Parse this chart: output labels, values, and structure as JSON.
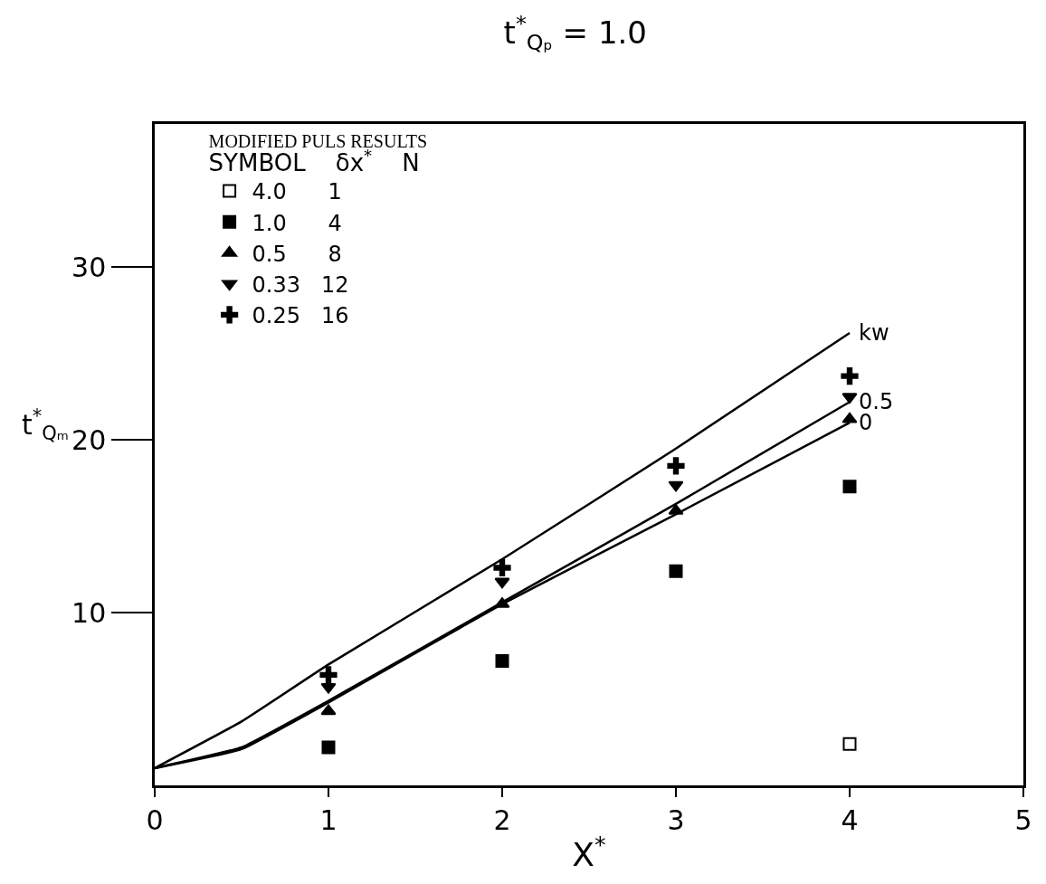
{
  "chart_data": {
    "type": "scatter",
    "title": "t$^{*}$$_{Qₚ}$ = 1.0",
    "xlabel": "X$^{*}$",
    "ylabel": "t$^{*}$$_{Qₘ}$",
    "legend_title": "MODIFIED PULS RESULTS",
    "annotations": [
      "SYMBOL    δx$^{*}$    N"
    ],
    "xlim": [
      0,
      5
    ],
    "ylim": [
      0,
      38.3
    ],
    "xticks": [
      0,
      1,
      2,
      3,
      4,
      5
    ],
    "yticks": [
      10,
      20,
      30
    ],
    "grid": false,
    "legend": "top left",
    "series": [
      {
        "name": "4.0      1",
        "color": "#000000",
        "marker": "square-open",
        "x": [
          4
        ],
        "values": [
          2.4
        ]
      },
      {
        "name": "1.0      4",
        "color": "#000000",
        "marker": "square",
        "x": [
          1,
          2,
          3,
          4
        ],
        "values": [
          2.2,
          7.2,
          12.4,
          17.3
        ]
      },
      {
        "name": "0.5      8",
        "color": "#000000",
        "marker": "triangle",
        "x": [
          1,
          2,
          3,
          4
        ],
        "values": [
          4.3,
          10.5,
          15.9,
          21.2
        ]
      },
      {
        "name": "0.33   12",
        "color": "#000000",
        "marker": "triangle-down",
        "x": [
          1,
          2,
          3,
          4
        ],
        "values": [
          5.7,
          11.8,
          17.4,
          22.5
        ]
      },
      {
        "name": "0.25   16",
        "color": "#000000",
        "marker": "cross",
        "x": [
          1,
          2,
          3,
          4
        ],
        "values": [
          6.4,
          12.6,
          18.5,
          23.7
        ]
      },
      {
        "name": "kw",
        "type": "line",
        "color": "#000000",
        "marker": "none",
        "line_style": "solid",
        "x": [
          0,
          0.5,
          1,
          2,
          3,
          4
        ],
        "values": [
          1.0,
          3.7,
          7.0,
          13.1,
          19.5,
          26.2
        ]
      },
      {
        "name": "0.5",
        "type": "line",
        "color": "#000000",
        "marker": "none",
        "line_style": "solid",
        "x": [
          0,
          0.5,
          1,
          2,
          3,
          4
        ],
        "values": [
          1.0,
          2.2,
          4.9,
          10.6,
          16.3,
          22.2
        ]
      },
      {
        "name": "0",
        "type": "line",
        "color": "#000000",
        "marker": "none",
        "line_style": "solid",
        "x": [
          0,
          0.5,
          1,
          2,
          3,
          4
        ],
        "values": [
          1.0,
          2.1,
          4.8,
          10.5,
          15.7,
          21.0
        ]
      }
    ]
  }
}
